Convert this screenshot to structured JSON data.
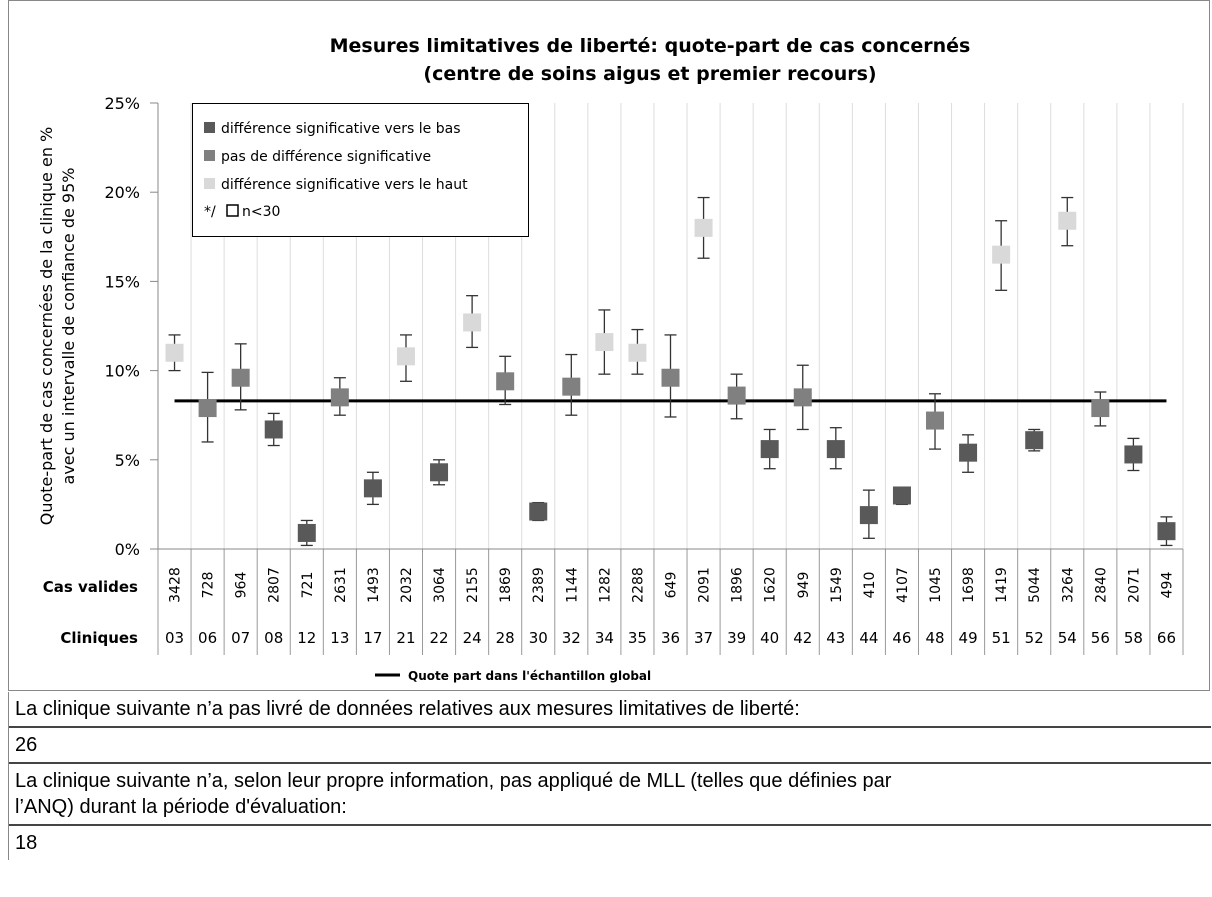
{
  "chart_data": {
    "type": "errorbar",
    "title": [
      "Mesures limitatives de liberté: quote-part de cas concernés",
      "(centre de soins aigus et premier recours)"
    ],
    "y_label": [
      "Quote-part de cas concernées de la clinique en %",
      "avec un intervalle de confiance de 95%"
    ],
    "ylim": [
      0,
      25
    ],
    "yticks": [
      {
        "value": 0,
        "label": "0%"
      },
      {
        "value": 5,
        "label": "5%"
      },
      {
        "value": 10,
        "label": "10%"
      },
      {
        "value": 15,
        "label": "15%"
      },
      {
        "value": 20,
        "label": "20%"
      },
      {
        "value": 25,
        "label": "25%"
      }
    ],
    "grid": true,
    "row_labels": {
      "cases": "Cas valides",
      "categories": "Cliniques"
    },
    "categories": [
      "03",
      "06",
      "07",
      "08",
      "12",
      "13",
      "17",
      "21",
      "22",
      "24",
      "28",
      "30",
      "32",
      "34",
      "35",
      "36",
      "37",
      "39",
      "40",
      "42",
      "43",
      "44",
      "46",
      "48",
      "49",
      "51",
      "52",
      "54",
      "56",
      "58",
      "66"
    ],
    "cases": [
      3428,
      728,
      964,
      2807,
      721,
      2631,
      1493,
      2032,
      3064,
      2155,
      1869,
      2389,
      1144,
      1282,
      2288,
      649,
      2091,
      1896,
      1620,
      949,
      1549,
      410,
      4107,
      1045,
      1698,
      1419,
      5044,
      3264,
      2840,
      2071,
      494
    ],
    "series": [
      {
        "name": "différence significative vers le bas",
        "color": "#595959",
        "values": [
          null,
          null,
          null,
          6.7,
          0.9,
          null,
          3.4,
          null,
          4.3,
          null,
          null,
          2.1,
          null,
          null,
          null,
          null,
          null,
          null,
          5.6,
          null,
          5.6,
          1.9,
          3.0,
          null,
          5.4,
          null,
          6.1,
          null,
          null,
          5.3,
          1.0
        ],
        "lower": [
          null,
          null,
          null,
          5.8,
          0.2,
          null,
          2.5,
          null,
          3.6,
          null,
          null,
          1.6,
          null,
          null,
          null,
          null,
          null,
          null,
          4.5,
          null,
          4.5,
          0.6,
          2.5,
          null,
          4.3,
          null,
          5.5,
          null,
          null,
          4.4,
          0.2
        ],
        "upper": [
          null,
          null,
          null,
          7.6,
          1.6,
          null,
          4.3,
          null,
          5.0,
          null,
          null,
          2.6,
          null,
          null,
          null,
          null,
          null,
          null,
          6.7,
          null,
          6.8,
          3.3,
          3.3,
          null,
          6.4,
          null,
          6.7,
          null,
          null,
          6.2,
          1.8
        ]
      },
      {
        "name": "pas de différence significative",
        "color": "#808080",
        "values": [
          null,
          7.9,
          9.6,
          null,
          null,
          8.5,
          null,
          null,
          null,
          null,
          9.4,
          null,
          9.1,
          null,
          null,
          9.6,
          null,
          8.6,
          null,
          8.5,
          null,
          null,
          null,
          7.2,
          null,
          null,
          null,
          null,
          7.9,
          null,
          null
        ],
        "lower": [
          null,
          6.0,
          7.8,
          null,
          null,
          7.5,
          null,
          null,
          null,
          null,
          8.1,
          null,
          7.5,
          null,
          null,
          7.4,
          null,
          7.3,
          null,
          6.7,
          null,
          null,
          null,
          5.6,
          null,
          null,
          null,
          null,
          6.9,
          null,
          null
        ],
        "upper": [
          null,
          9.9,
          11.5,
          null,
          null,
          9.6,
          null,
          null,
          null,
          null,
          10.8,
          null,
          10.9,
          null,
          null,
          12.0,
          null,
          9.8,
          null,
          10.3,
          null,
          null,
          null,
          8.7,
          null,
          null,
          null,
          null,
          8.8,
          null,
          null
        ]
      },
      {
        "name": "différence significative vers le haut",
        "color": "#d9d9d9",
        "values": [
          11.0,
          null,
          null,
          null,
          null,
          null,
          null,
          10.8,
          null,
          12.7,
          null,
          null,
          null,
          11.6,
          11.0,
          null,
          18.0,
          null,
          null,
          null,
          null,
          null,
          null,
          null,
          null,
          16.5,
          null,
          18.4,
          null,
          null,
          null
        ],
        "lower": [
          10.0,
          null,
          null,
          null,
          null,
          null,
          null,
          9.4,
          null,
          11.3,
          null,
          null,
          null,
          9.8,
          9.8,
          null,
          16.3,
          null,
          null,
          null,
          null,
          null,
          null,
          null,
          null,
          14.5,
          null,
          17.0,
          null,
          null,
          null
        ],
        "upper": [
          12.0,
          null,
          null,
          null,
          null,
          null,
          null,
          12.0,
          null,
          14.2,
          null,
          null,
          null,
          13.4,
          12.3,
          null,
          19.7,
          null,
          null,
          null,
          null,
          null,
          null,
          null,
          null,
          18.4,
          null,
          19.7,
          null,
          null,
          null
        ]
      }
    ],
    "legend_note": {
      "prefix": "*/",
      "label": "n<30"
    },
    "reference_line": {
      "name": "Quote part dans l'échantillon global",
      "value": 8.3,
      "color": "#000000"
    }
  },
  "notes": [
    {
      "label": [
        "La clinique suivante n’a pas livré de données relatives aux mesures limitatives de liberté:"
      ],
      "clinic": "26"
    },
    {
      "label": [
        "La clinique suivante n’a, selon leur propre information, pas appliqué de MLL (telles que définies par",
        "l’ANQ) durant la période d'évaluation:"
      ],
      "clinic": "18"
    }
  ]
}
